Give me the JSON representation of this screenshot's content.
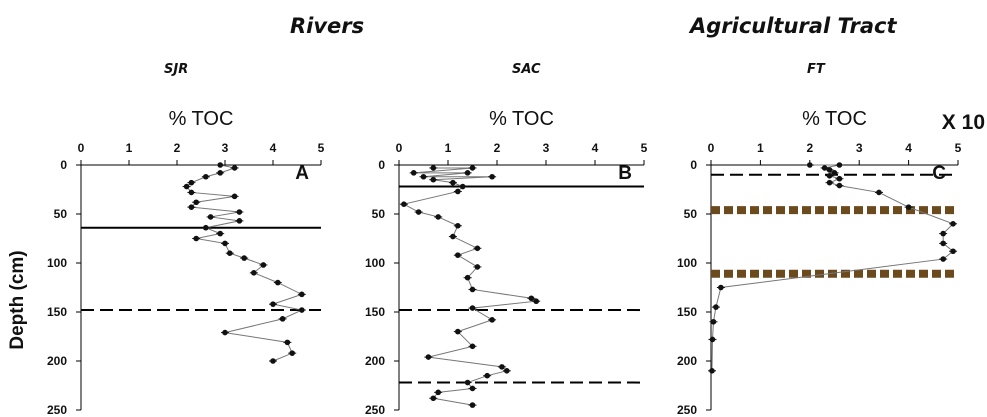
{
  "groups": [
    {
      "label": "Rivers"
    },
    {
      "label": "Agricultural Tract"
    }
  ],
  "y_axis_label": "Depth (cm)",
  "multiplier_note": "X 10",
  "chart_data": [
    {
      "type": "line",
      "title": "SJR",
      "xlabel": "% TOC",
      "ylabel": "Depth (cm)",
      "panel_letter": "A",
      "xlim": [
        0,
        5
      ],
      "ylim": [
        0,
        250
      ],
      "y_inverted": true,
      "xticks": [
        0,
        1,
        2,
        3,
        4,
        5
      ],
      "yticks": [
        0,
        50,
        100,
        150,
        200,
        250
      ],
      "series": [
        {
          "x": [
            2.9,
            3.2,
            2.9,
            2.6,
            2.3,
            2.2,
            2.3,
            3.2,
            2.4,
            2.3,
            3.3,
            2.7,
            3.3,
            2.6,
            2.9,
            2.4,
            3.0,
            3.1,
            3.4,
            3.8,
            3.6,
            4.1,
            4.6,
            4.0,
            4.6,
            4.2,
            3.0,
            4.3,
            4.4,
            4.0
          ],
          "y": [
            0,
            3,
            8,
            12,
            18,
            22,
            28,
            32,
            38,
            43,
            48,
            53,
            57,
            64,
            70,
            75,
            80,
            90,
            95,
            102,
            110,
            120,
            132,
            142,
            148,
            157,
            171,
            181,
            192,
            200
          ]
        }
      ],
      "reference_lines": [
        {
          "y": 64,
          "style": "solid"
        },
        {
          "y": 148,
          "style": "dashed"
        }
      ]
    },
    {
      "type": "line",
      "title": "SAC",
      "xlabel": "% TOC",
      "ylabel": "",
      "panel_letter": "B",
      "xlim": [
        0,
        5
      ],
      "ylim": [
        0,
        250
      ],
      "y_inverted": true,
      "xticks": [
        0,
        1,
        2,
        3,
        4,
        5
      ],
      "yticks": [
        0,
        50,
        100,
        150,
        200,
        250
      ],
      "series": [
        {
          "x": [
            0.7,
            1.5,
            0.3,
            1.4,
            0.5,
            1.9,
            0.7,
            1.1,
            1.3,
            1.2,
            0.1,
            0.4,
            0.8,
            1.2,
            1.1,
            1.6,
            1.2,
            1.6,
            1.4,
            1.5,
            2.7,
            2.8,
            1.5,
            1.9,
            1.2,
            1.5,
            0.6,
            2.1,
            2.2,
            1.8,
            1.4,
            1.5,
            0.8,
            0.7,
            1.5
          ],
          "y": [
            3,
            3,
            8,
            8,
            12,
            12,
            15,
            18,
            22,
            27,
            40,
            48,
            53,
            62,
            73,
            85,
            92,
            104,
            115,
            127,
            136,
            139,
            146,
            158,
            170,
            185,
            196,
            206,
            210,
            215,
            222,
            228,
            232,
            238,
            245
          ]
        }
      ],
      "reference_lines": [
        {
          "y": 22,
          "style": "solid"
        },
        {
          "y": 148,
          "style": "dashed"
        },
        {
          "y": 222,
          "style": "dashed"
        }
      ]
    },
    {
      "type": "line",
      "title": "FT",
      "xlabel": "% TOC",
      "ylabel": "",
      "panel_letter": "C",
      "xlim": [
        0,
        5
      ],
      "ylim": [
        0,
        250
      ],
      "y_inverted": true,
      "xticks": [
        0,
        1,
        2,
        3,
        4,
        5
      ],
      "yticks": [
        0,
        50,
        100,
        150,
        200,
        250
      ],
      "series": [
        {
          "x": [
            2.0,
            2.6,
            2.3,
            2.4,
            2.5,
            2.4,
            2.6,
            2.4,
            2.6,
            3.4,
            4.0,
            4.9,
            4.7,
            4.7,
            4.9,
            4.7,
            0.2,
            0.1,
            0.05,
            0.03,
            0.02
          ],
          "y": [
            0,
            0,
            3,
            5,
            8,
            11,
            14,
            18,
            21,
            28,
            43,
            60,
            70,
            80,
            88,
            96,
            125,
            145,
            160,
            178,
            210
          ]
        }
      ],
      "reference_lines": [
        {
          "y": 10,
          "style": "dashed"
        },
        {
          "y": 46,
          "style": "dotted",
          "color": "#6b4a1e"
        },
        {
          "y": 111,
          "style": "dotted",
          "color": "#6b4a1e"
        }
      ]
    }
  ]
}
